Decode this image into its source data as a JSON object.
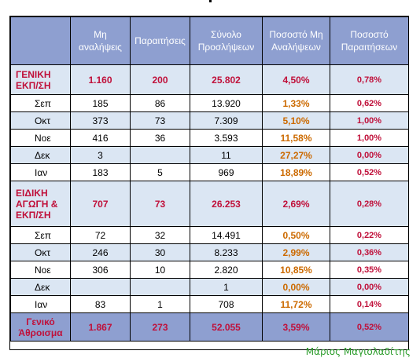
{
  "headers": [
    "",
    "Μη αναλήψεις",
    "Παραιτήσεις",
    "Σύνολο Προσλήψεων",
    "Ποσοστό Μη Αναλήψεων",
    "Ποσοστό Παραιτήσεων"
  ],
  "rows": [
    {
      "kind": "grp",
      "label": "ΓΕΝΙΚΗ ΕΚΠ/ΣΗ",
      "no_accept": "1.160",
      "resign": "200",
      "total": "25.802",
      "pct_no_accept": "4,50%",
      "pct_resign": "0,78%"
    },
    {
      "kind": "sub",
      "label": "Σεπ",
      "no_accept": "185",
      "resign": "86",
      "total": "13.920",
      "pct_no_accept": "1,33%",
      "pct_resign": "0,62%"
    },
    {
      "kind": "sub alt",
      "label": "Οκτ",
      "no_accept": "373",
      "resign": "73",
      "total": "7.309",
      "pct_no_accept": "5,10%",
      "pct_resign": "1,00%"
    },
    {
      "kind": "sub",
      "label": "Νοε",
      "no_accept": "416",
      "resign": "36",
      "total": "3.593",
      "pct_no_accept": "11,58%",
      "pct_resign": "1,00%"
    },
    {
      "kind": "sub alt",
      "label": "Δεκ",
      "no_accept": "3",
      "resign": "",
      "total": "11",
      "pct_no_accept": "27,27%",
      "pct_resign": "0,00%"
    },
    {
      "kind": "sub",
      "label": "Ιαν",
      "no_accept": "183",
      "resign": "5",
      "total": "969",
      "pct_no_accept": "18,89%",
      "pct_resign": "0,52%"
    },
    {
      "kind": "grp",
      "label": "ΕΙΔΙΚΗ ΑΓΩΓΗ & ΕΚΠ/ΣΗ",
      "no_accept": "707",
      "resign": "73",
      "total": "26.253",
      "pct_no_accept": "2,69%",
      "pct_resign": "0,28%"
    },
    {
      "kind": "sub",
      "label": "Σεπ",
      "no_accept": "72",
      "resign": "32",
      "total": "14.491",
      "pct_no_accept": "0,50%",
      "pct_resign": "0,22%"
    },
    {
      "kind": "sub alt",
      "label": "Οκτ",
      "no_accept": "246",
      "resign": "30",
      "total": "8.233",
      "pct_no_accept": "2,99%",
      "pct_resign": "0,36%"
    },
    {
      "kind": "sub",
      "label": "Νοε",
      "no_accept": "306",
      "resign": "10",
      "total": "2.820",
      "pct_no_accept": "10,85%",
      "pct_resign": "0,35%"
    },
    {
      "kind": "sub alt",
      "label": "Δεκ",
      "no_accept": "",
      "resign": "",
      "total": "1",
      "pct_no_accept": "0,00%",
      "pct_resign": "0,00%"
    },
    {
      "kind": "sub",
      "label": "Ιαν",
      "no_accept": "83",
      "resign": "1",
      "total": "708",
      "pct_no_accept": "11,72%",
      "pct_resign": "0,14%"
    },
    {
      "kind": "total",
      "label": "Γενικό Άθροισμα",
      "no_accept": "1.867",
      "resign": "273",
      "total": "52.055",
      "pct_no_accept": "3,59%",
      "pct_resign": "0,52%"
    }
  ],
  "signature": "Μάριος Μαγιολαδίτης"
}
